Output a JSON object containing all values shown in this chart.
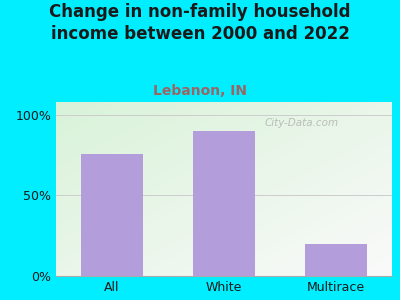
{
  "title": "Change in non-family household\nincome between 2000 and 2022",
  "subtitle": "Lebanon, IN",
  "categories": [
    "All",
    "White",
    "Multirace"
  ],
  "values": [
    76,
    90,
    20
  ],
  "bar_color": "#b39ddb",
  "title_color": "#1a1a1a",
  "subtitle_color": "#996666",
  "background_color": "#00eeff",
  "yticks": [
    0,
    50,
    100
  ],
  "ytick_labels": [
    "0%",
    "50%",
    "100%"
  ],
  "ylim": [
    0,
    108
  ],
  "watermark": "City-Data.com",
  "title_fontsize": 12,
  "subtitle_fontsize": 10,
  "tick_fontsize": 9,
  "bar_width": 0.55
}
